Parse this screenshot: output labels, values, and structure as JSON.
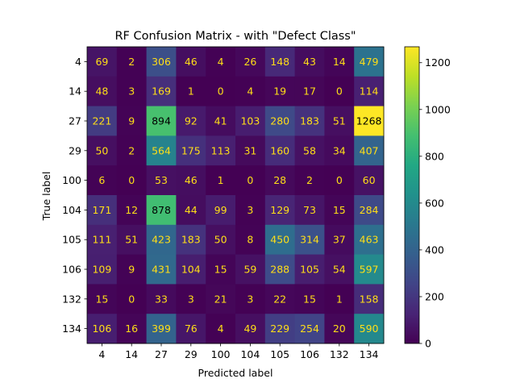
{
  "chart_data": {
    "type": "heatmap",
    "title": "RF Confusion Matrix - with \"Defect Class\"",
    "xlabel": "Predicted label",
    "ylabel": "True label",
    "x_categories": [
      "4",
      "14",
      "27",
      "29",
      "100",
      "104",
      "105",
      "106",
      "132",
      "134"
    ],
    "y_categories": [
      "4",
      "14",
      "27",
      "29",
      "100",
      "104",
      "105",
      "106",
      "132",
      "134"
    ],
    "values": [
      [
        69,
        2,
        306,
        46,
        4,
        26,
        148,
        43,
        14,
        479
      ],
      [
        48,
        3,
        169,
        1,
        0,
        4,
        19,
        17,
        0,
        114
      ],
      [
        221,
        9,
        894,
        92,
        41,
        103,
        280,
        183,
        51,
        1268
      ],
      [
        50,
        2,
        564,
        175,
        113,
        31,
        160,
        58,
        34,
        407
      ],
      [
        6,
        0,
        53,
        46,
        1,
        0,
        28,
        2,
        0,
        60
      ],
      [
        171,
        12,
        878,
        44,
        99,
        3,
        129,
        73,
        15,
        284
      ],
      [
        111,
        51,
        423,
        183,
        50,
        8,
        450,
        314,
        37,
        463
      ],
      [
        109,
        9,
        431,
        104,
        15,
        59,
        288,
        105,
        54,
        597
      ],
      [
        15,
        0,
        33,
        3,
        21,
        3,
        22,
        15,
        1,
        158
      ],
      [
        106,
        16,
        399,
        76,
        4,
        49,
        229,
        254,
        20,
        590
      ]
    ],
    "colormap": "viridis",
    "colorbar": {
      "min": 0,
      "max": 1268,
      "ticks": [
        0,
        200,
        400,
        600,
        800,
        1000,
        1200
      ]
    },
    "grid": false
  }
}
